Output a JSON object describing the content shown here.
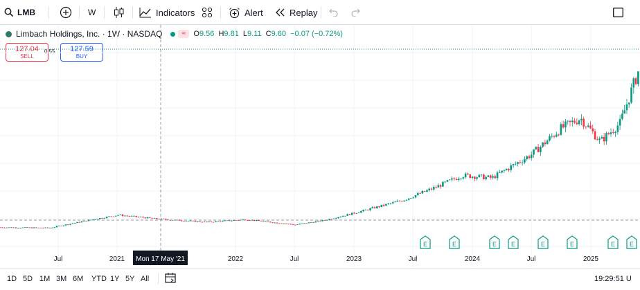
{
  "toolbar": {
    "symbol": "LMB",
    "interval": "W",
    "indicators_label": "Indicators",
    "alert_label": "Alert",
    "replay_label": "Replay",
    "icons": {
      "search": "search-icon",
      "add": "plus-circle-icon",
      "candles": "candles-icon",
      "indicators": "indicators-icon",
      "templates": "templates-icon",
      "alert": "alarm-clock-icon",
      "replay": "replay-icon",
      "undo": "undo-icon",
      "redo": "redo-icon",
      "fullscreen": "fullscreen-icon"
    }
  },
  "legend": {
    "title": "Limbach Holdings, Inc. · 1W · NASDAQ",
    "open_label": "O",
    "open": "9.56",
    "high_label": "H",
    "high": "9.81",
    "low_label": "L",
    "low": "9.11",
    "close_label": "C",
    "close": "9.60",
    "change": "−0.07 (−0.72%)"
  },
  "trade": {
    "sell_price": "127.04",
    "sell_label": "SELL",
    "spread": "0.55",
    "buy_price": "127.59",
    "buy_label": "BUY"
  },
  "crosshair": {
    "date_label": "Mon 17 May '21"
  },
  "x_axis_labels": [
    "Jul",
    "2021",
    "2022",
    "Jul",
    "2023",
    "Jul",
    "2024",
    "Jul",
    "2025"
  ],
  "earnings_marker_label": "E",
  "earnings_marker_count": 8,
  "bottom": {
    "ranges": [
      "1D",
      "5D",
      "1M",
      "3M",
      "6M",
      "YTD",
      "1Y",
      "5Y",
      "All"
    ],
    "time": "19:29:51 U"
  },
  "colors": {
    "up": "#089981",
    "down": "#f23645",
    "grid": "#f0f3fa",
    "text": "#131722",
    "marker": "#089981"
  },
  "chart_data": {
    "type": "candlestick",
    "symbol": "LMB",
    "timeframe": "1W",
    "x_start": "2020-01",
    "x_end": "2025-06",
    "approx_close_path": [
      {
        "date": "2020-01",
        "close": 4.0
      },
      {
        "date": "2020-06",
        "close": 3.5
      },
      {
        "date": "2020-10",
        "close": 9.5
      },
      {
        "date": "2021-01",
        "close": 13.5
      },
      {
        "date": "2021-05",
        "close": 10.5
      },
      {
        "date": "2021-10",
        "close": 8.0
      },
      {
        "date": "2022-02",
        "close": 10.0
      },
      {
        "date": "2022-07",
        "close": 6.0
      },
      {
        "date": "2022-10",
        "close": 9.5
      },
      {
        "date": "2023-01",
        "close": 15.0
      },
      {
        "date": "2023-06",
        "close": 25.0
      },
      {
        "date": "2023-09",
        "close": 34.0
      },
      {
        "date": "2023-12",
        "close": 44.0
      },
      {
        "date": "2024-03",
        "close": 42.0
      },
      {
        "date": "2024-07",
        "close": 60.0
      },
      {
        "date": "2024-10",
        "close": 80.0
      },
      {
        "date": "2024-12",
        "close": 88.0
      },
      {
        "date": "2025-02",
        "close": 70.0
      },
      {
        "date": "2025-04",
        "close": 84.0
      },
      {
        "date": "2025-06",
        "close": 127.0
      }
    ]
  }
}
